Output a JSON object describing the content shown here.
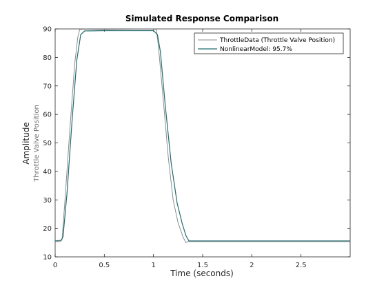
{
  "chart_data": {
    "type": "line",
    "title": "Simulated Response Comparison",
    "xlabel": "Time (seconds)",
    "ylabel": "Amplitude",
    "ylabel_sub": "Throttle Valve Position",
    "xlim": [
      0,
      3
    ],
    "ylim": [
      10,
      90
    ],
    "xticks": [
      0,
      0.5,
      1,
      1.5,
      2,
      2.5
    ],
    "xtick_labels": [
      "0",
      "0.5",
      "1",
      "1.5",
      "2",
      "2.5"
    ],
    "yticks": [
      10,
      20,
      30,
      40,
      50,
      60,
      70,
      80,
      90
    ],
    "ytick_labels": [
      "10",
      "20",
      "30",
      "40",
      "50",
      "60",
      "70",
      "80",
      "90"
    ],
    "grid": false,
    "legend_position": "top-right",
    "series": [
      {
        "name": "ThrottleData (Throttle Valve Position)",
        "color": "#8c8c8c",
        "x": [
          0,
          0.05,
          0.07,
          0.1,
          0.15,
          0.2,
          0.23,
          0.25,
          0.3,
          0.5,
          0.8,
          1.0,
          1.03,
          1.05,
          1.1,
          1.15,
          1.2,
          1.25,
          1.3,
          1.33,
          1.35,
          1.5,
          2.0,
          2.5,
          3.0
        ],
        "y": [
          15.4,
          15.4,
          16.0,
          30.0,
          55.0,
          78.0,
          87.0,
          89.8,
          89.9,
          89.8,
          89.9,
          89.9,
          89.8,
          84.0,
          65.0,
          45.0,
          30.0,
          22.0,
          17.0,
          15.0,
          15.4,
          15.4,
          15.4,
          15.4,
          15.4
        ]
      },
      {
        "name": "NonlinearModel: 95.7%",
        "color": "#1f6b6e",
        "x": [
          0,
          0.06,
          0.08,
          0.12,
          0.17,
          0.22,
          0.26,
          0.3,
          0.5,
          0.8,
          1.0,
          1.04,
          1.07,
          1.12,
          1.18,
          1.24,
          1.29,
          1.33,
          1.36,
          1.5,
          2.0,
          2.5,
          3.0
        ],
        "y": [
          15.6,
          15.8,
          17.0,
          32.0,
          57.0,
          79.0,
          88.0,
          89.3,
          89.4,
          89.4,
          89.4,
          88.0,
          82.0,
          63.0,
          43.0,
          29.0,
          22.0,
          17.5,
          15.6,
          15.6,
          15.6,
          15.6,
          15.6
        ]
      }
    ]
  }
}
